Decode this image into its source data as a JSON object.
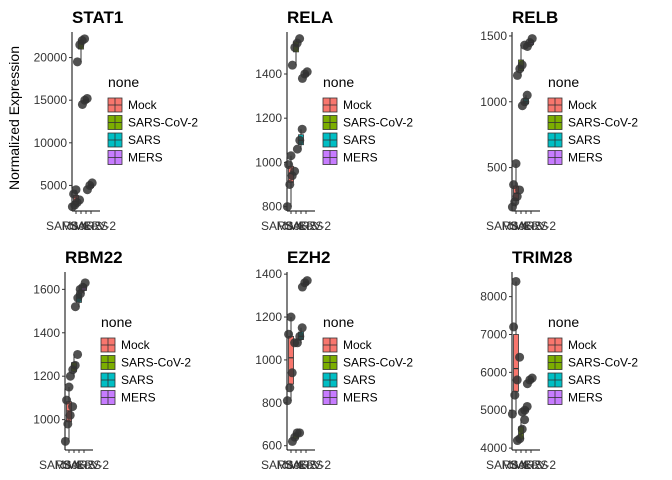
{
  "y_axis_title": "Normalized Expression",
  "legend": {
    "title": "none",
    "groups": [
      "Mock",
      "SARS-CoV-2",
      "SARS",
      "MERS"
    ]
  },
  "colors": {
    "Mock": "#f8766d",
    "SARS-CoV-2": "#7cae00",
    "SARS": "#00bfc4",
    "MERS": "#c77cff",
    "points": "#333333"
  },
  "chart_data": [
    {
      "type": "box",
      "title": "STAT1",
      "ylim": [
        2000,
        23000
      ],
      "yticks": [
        5000,
        10000,
        15000,
        20000
      ],
      "categories": [
        "Mock",
        "SARS-CoV-2",
        "SARS",
        "MERS"
      ],
      "series": [
        {
          "name": "Mock",
          "values": [
            2500,
            2700,
            3000,
            3300,
            4000,
            4500
          ]
        },
        {
          "name": "SARS-CoV-2",
          "values": [
            19500,
            21500,
            22000,
            22200
          ]
        },
        {
          "name": "SARS",
          "values": [
            14500,
            15000,
            15200
          ]
        },
        {
          "name": "MERS",
          "values": [
            4500,
            5000,
            5300
          ]
        }
      ]
    },
    {
      "type": "box",
      "title": "RELA",
      "ylim": [
        780,
        1590
      ],
      "yticks": [
        800,
        1000,
        1200,
        1400
      ],
      "categories": [
        "Mock",
        "SARS-CoV-2",
        "SARS",
        "MERS"
      ],
      "series": [
        {
          "name": "Mock",
          "values": [
            800,
            900,
            940,
            960,
            990,
            1030
          ]
        },
        {
          "name": "SARS-CoV-2",
          "values": [
            1440,
            1520,
            1540,
            1560
          ]
        },
        {
          "name": "SARS",
          "values": [
            1060,
            1100,
            1150
          ]
        },
        {
          "name": "MERS",
          "values": [
            1380,
            1400,
            1410
          ]
        }
      ]
    },
    {
      "type": "box",
      "title": "RELB",
      "ylim": [
        170,
        1530
      ],
      "yticks": [
        500,
        1000,
        1500
      ],
      "categories": [
        "Mock",
        "SARS-CoV-2",
        "SARS",
        "MERS"
      ],
      "series": [
        {
          "name": "Mock",
          "values": [
            200,
            240,
            280,
            330,
            370,
            530
          ]
        },
        {
          "name": "SARS-CoV-2",
          "values": [
            1200,
            1250,
            1280,
            1430
          ]
        },
        {
          "name": "SARS",
          "values": [
            970,
            1000,
            1050
          ]
        },
        {
          "name": "MERS",
          "values": [
            1420,
            1450,
            1480
          ]
        }
      ]
    },
    {
      "type": "box",
      "title": "RBM22",
      "ylim": [
        860,
        1680
      ],
      "yticks": [
        1000,
        1200,
        1400,
        1600
      ],
      "categories": [
        "Mock",
        "SARS-CoV-2",
        "SARS",
        "MERS"
      ],
      "series": [
        {
          "name": "Mock",
          "values": [
            900,
            980,
            1020,
            1060,
            1090,
            1150
          ]
        },
        {
          "name": "SARS-CoV-2",
          "values": [
            1200,
            1230,
            1250,
            1300
          ]
        },
        {
          "name": "SARS",
          "values": [
            1520,
            1560,
            1600
          ]
        },
        {
          "name": "MERS",
          "values": [
            1580,
            1610,
            1630
          ]
        }
      ]
    },
    {
      "type": "box",
      "title": "EZH2",
      "ylim": [
        580,
        1410
      ],
      "yticks": [
        600,
        800,
        1000,
        1200,
        1400
      ],
      "categories": [
        "Mock",
        "SARS-CoV-2",
        "SARS",
        "MERS"
      ],
      "series": [
        {
          "name": "Mock",
          "values": [
            810,
            870,
            940,
            1080,
            1120,
            1200
          ]
        },
        {
          "name": "SARS-CoV-2",
          "values": [
            620,
            640,
            660,
            660
          ]
        },
        {
          "name": "SARS",
          "values": [
            1080,
            1110,
            1150
          ]
        },
        {
          "name": "MERS",
          "values": [
            1340,
            1360,
            1370
          ]
        }
      ]
    },
    {
      "type": "box",
      "title": "TRIM28",
      "ylim": [
        3950,
        8650
      ],
      "yticks": [
        4000,
        5000,
        6000,
        7000,
        8000
      ],
      "categories": [
        "Mock",
        "SARS-CoV-2",
        "SARS",
        "MERS"
      ],
      "series": [
        {
          "name": "Mock",
          "values": [
            4900,
            5400,
            5800,
            6400,
            7200,
            8400
          ]
        },
        {
          "name": "SARS-CoV-2",
          "values": [
            4200,
            4250,
            4500,
            4750
          ]
        },
        {
          "name": "SARS",
          "values": [
            4950,
            5000,
            5100
          ]
        },
        {
          "name": "MERS",
          "values": [
            5700,
            5800,
            5850
          ]
        }
      ]
    }
  ]
}
